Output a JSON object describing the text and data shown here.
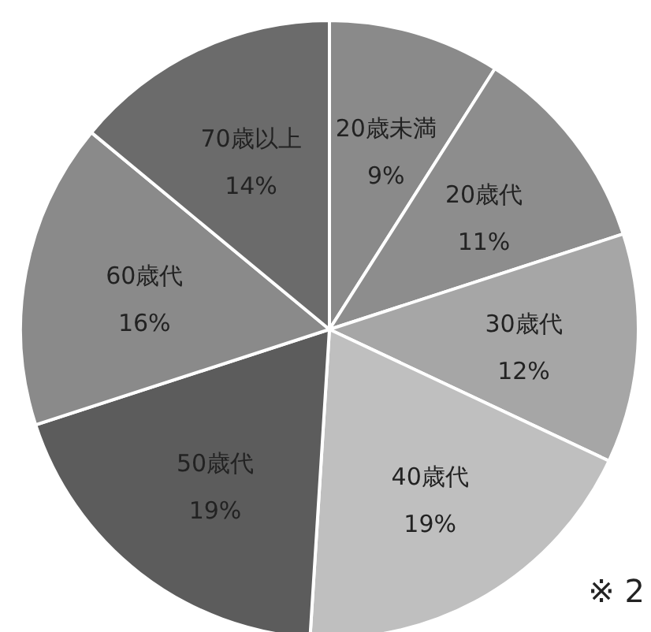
{
  "chart_data": {
    "type": "pie",
    "categories": [
      "20歳未満",
      "20歳代",
      "30歳代",
      "40歳代",
      "50歳代",
      "60歳代",
      "70歳以上"
    ],
    "values": [
      9,
      11,
      12,
      19,
      19,
      16,
      14
    ],
    "colors": [
      "#8a8a8a",
      "#8d8d8d",
      "#a6a6a6",
      "#bfbfbf",
      "#5c5c5c",
      "#8a8a8a",
      "#6b6b6b"
    ],
    "value_labels": [
      "9%",
      "11%",
      "12%",
      "19%",
      "19%",
      "16%",
      "14%"
    ],
    "legend": false,
    "annotations": [
      "※ 2"
    ]
  }
}
